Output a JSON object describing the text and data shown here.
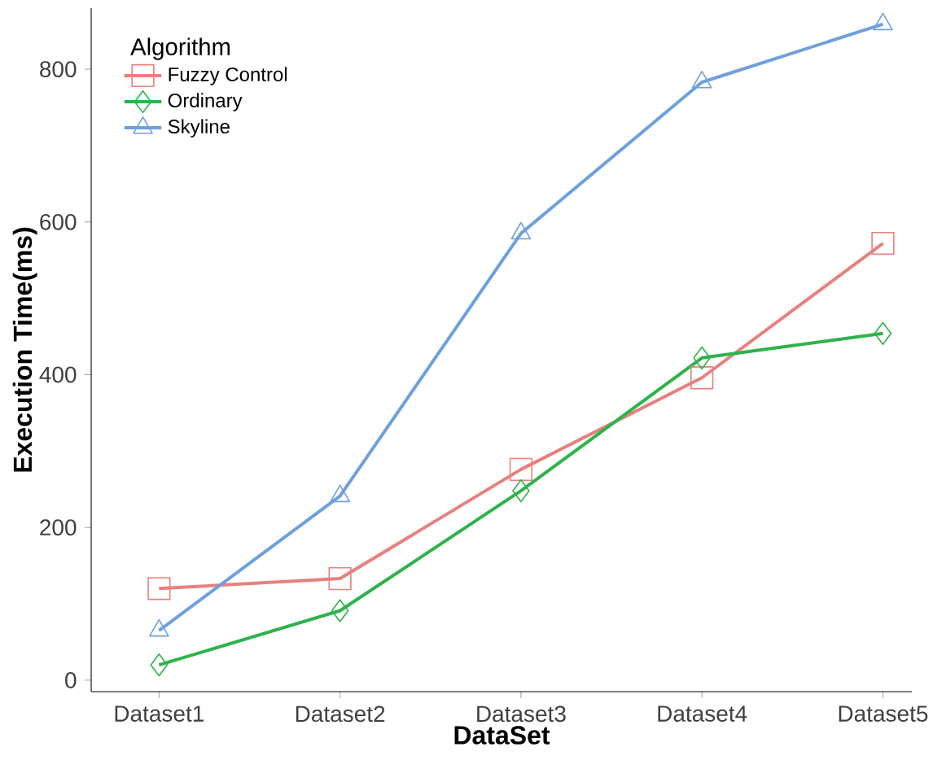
{
  "chart_data": {
    "type": "line",
    "xlabel": "DataSet",
    "ylabel": "Execution Time(ms)",
    "legend_title": "Algorithm",
    "legend": "top left",
    "grid": false,
    "categories": [
      "Dataset1",
      "Dataset2",
      "Dataset3",
      "Dataset4",
      "Dataset5"
    ],
    "ylim": [
      -15,
      880
    ],
    "yticks": [
      0,
      200,
      400,
      600,
      800
    ],
    "series": [
      {
        "name": "Fuzzy Control",
        "color": "#e8807d",
        "marker": "square",
        "values": [
          120,
          133,
          276,
          396,
          572
        ]
      },
      {
        "name": "Ordinary",
        "color": "#2db34a",
        "marker": "diamond",
        "values": [
          20,
          91,
          248,
          422,
          454
        ]
      },
      {
        "name": "Skyline",
        "color": "#6fa0dc",
        "marker": "triangle",
        "values": [
          65,
          241,
          585,
          783,
          859
        ]
      }
    ]
  }
}
